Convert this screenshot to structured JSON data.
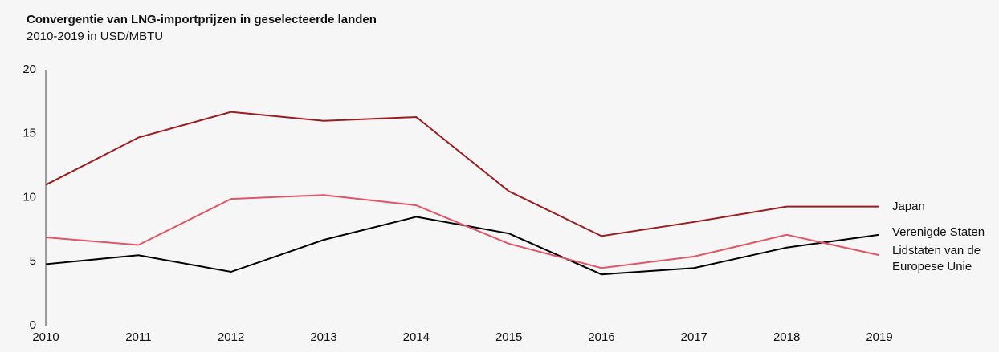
{
  "chart_data": {
    "type": "line",
    "title": "Convergentie van LNG-importprijzen in geselecteerde landen",
    "subtitle": "2010-2019 in USD/MBTU",
    "x": [
      2010,
      2011,
      2012,
      2013,
      2014,
      2015,
      2016,
      2017,
      2018,
      2019
    ],
    "xlim": [
      2010,
      2019
    ],
    "xticks": [
      2010,
      2011,
      2012,
      2013,
      2014,
      2015,
      2016,
      2017,
      2018,
      2019
    ],
    "ylim": [
      0,
      20
    ],
    "yticks": [
      0,
      5,
      10,
      15,
      20
    ],
    "grid": false,
    "series": [
      {
        "name": "Japan",
        "color": "#9b1c1f",
        "values": [
          11.0,
          14.7,
          16.7,
          16.0,
          16.3,
          10.5,
          7.0,
          8.1,
          9.3,
          9.3
        ]
      },
      {
        "name": "Verenigde Staten",
        "color": "#000000",
        "values": [
          4.8,
          5.5,
          4.2,
          6.7,
          8.5,
          7.2,
          4.0,
          4.5,
          6.1,
          7.1
        ]
      },
      {
        "name": "Lidstaten van de Europese Unie",
        "color": "#e05567",
        "values": [
          6.9,
          6.3,
          9.9,
          10.2,
          9.4,
          6.4,
          4.5,
          5.4,
          7.1,
          5.5
        ]
      }
    ]
  }
}
